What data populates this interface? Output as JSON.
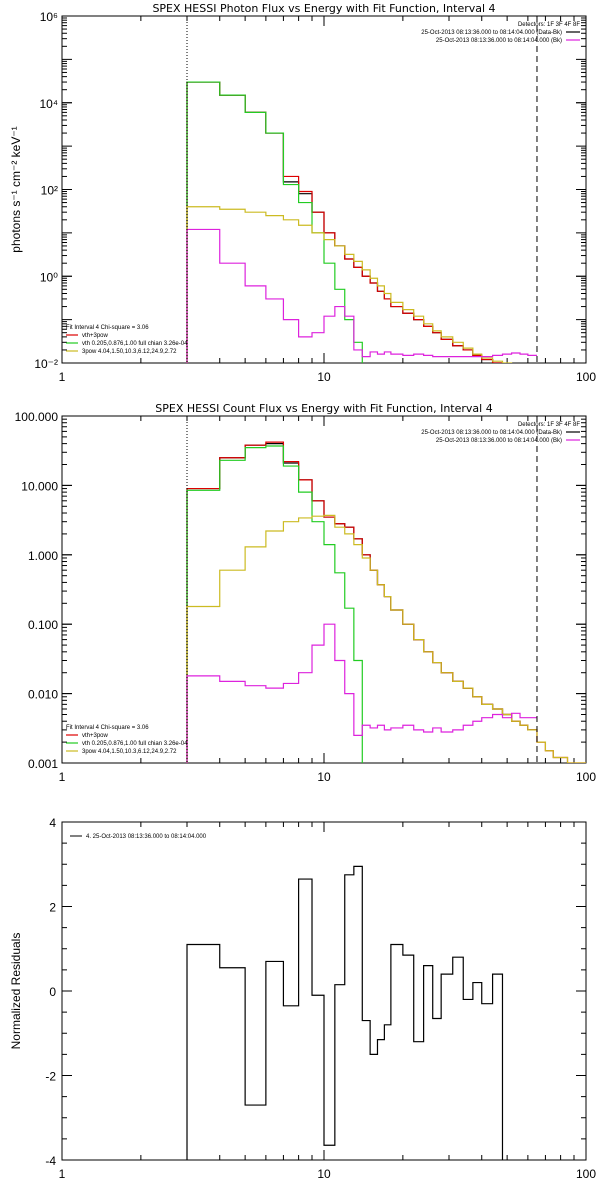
{
  "chart_data": [
    {
      "type": "line",
      "title": "SPEX HESSI Photon Flux vs Energy with Fit Function, Interval 4",
      "xlabel": "",
      "ylabel": "photons s⁻¹ cm⁻² keV⁻¹",
      "xscale": "log",
      "yscale": "log",
      "xlim": [
        1,
        100
      ],
      "ylim": [
        0.01,
        1000000
      ],
      "x_ticks": [
        "1",
        "10",
        "100"
      ],
      "y_ticks": [
        "10⁻²",
        "10⁰",
        "10²",
        "10⁴",
        "10⁶"
      ],
      "legend_right": {
        "header": "Detectors: 1F 3F 4F 8F",
        "lines": [
          {
            "text": "25-Oct-2013 08:13:36.000 to 08:14:04.000 (Data-Bk)",
            "color": "#000000"
          },
          {
            "text": "25-Oct-2013 08:13:36.000 to 08:14:04.000 (Bk)",
            "color": "#dd22dd"
          }
        ]
      },
      "legend_left": {
        "header": "Fit Interval  4   Chi-square = 3.06",
        "lines": [
          {
            "text": "vth+3pow",
            "color": "#dd0000"
          },
          {
            "text": "vth 0.205,0.876,1.00  full chian 3.26e-04",
            "color": "#22cc22"
          },
          {
            "text": "3pow 4.04,1.50,10.3,6.12,24.9,2.72",
            "color": "#ccbb22"
          }
        ]
      },
      "vlines": [
        {
          "x": 3,
          "style": "dotted"
        },
        {
          "x": 65,
          "style": "dashed"
        }
      ],
      "edges": [
        3,
        4,
        5,
        6,
        7,
        8,
        9,
        10,
        11,
        12,
        13,
        14,
        15,
        16,
        17,
        18,
        20,
        22,
        24,
        26,
        28,
        31,
        34,
        37,
        40,
        44,
        48,
        52,
        56,
        60,
        65,
        70,
        75
      ],
      "series": [
        {
          "color": "#000000",
          "values": [
            30000,
            15000,
            6000,
            2000,
            150,
            80,
            30,
            10,
            5,
            2.5,
            1.6,
            1.0,
            0.7,
            0.45,
            0.3,
            0.2,
            0.14,
            0.1,
            0.07,
            0.05,
            0.035,
            0.025,
            0.02,
            0.015,
            0.012,
            0.01,
            0.009,
            0.008,
            0.007,
            0.006
          ]
        },
        {
          "color": "#dd0000",
          "values": [
            30000,
            15000,
            6000,
            2000,
            200,
            90,
            30,
            10,
            5,
            2.5,
            1.6,
            1.0,
            0.7,
            0.45,
            0.3,
            0.2,
            0.14,
            0.1,
            0.07,
            0.05,
            0.035,
            0.025,
            0.02,
            0.015,
            0.012,
            0.01,
            0.009,
            0.008,
            0.007,
            0.006,
            0.005,
            0.004
          ]
        },
        {
          "color": "#22cc22",
          "values": [
            30000,
            15000,
            6000,
            2000,
            130,
            50,
            10,
            2,
            0.5,
            0.1,
            0.03,
            0.007,
            0.001
          ]
        },
        {
          "color": "#ccbb22",
          "values": [
            40,
            35,
            30,
            25,
            20,
            15,
            10,
            7,
            5,
            3.2,
            2.2,
            1.4,
            0.9,
            0.6,
            0.4,
            0.25,
            0.17,
            0.12,
            0.08,
            0.055,
            0.04,
            0.03,
            0.022,
            0.016,
            0.013,
            0.011,
            0.01,
            0.009,
            0.008,
            0.007,
            0.005,
            0.004
          ]
        },
        {
          "color": "#dd22dd",
          "values": [
            12,
            2,
            0.6,
            0.3,
            0.1,
            0.04,
            0.05,
            0.12,
            0.2,
            0.12,
            0.02,
            0.014,
            0.018,
            0.016,
            0.018,
            0.016,
            0.015,
            0.016,
            0.015,
            0.014,
            0.014,
            0.014,
            0.014,
            0.014,
            0.014,
            0.015,
            0.016,
            0.017,
            0.016,
            0.015
          ]
        }
      ]
    },
    {
      "type": "line",
      "title": "SPEX HESSI Count Flux vs Energy with Fit Function, Interval 4",
      "xlabel": "",
      "ylabel": "",
      "xscale": "log",
      "yscale": "log",
      "xlim": [
        1,
        100
      ],
      "ylim": [
        0.001,
        100
      ],
      "x_ticks": [
        "1",
        "10",
        "100"
      ],
      "y_ticks": [
        "0.001",
        "0.010",
        "0.100",
        "1.000",
        "10.000",
        "100.000"
      ],
      "legend_right": {
        "header": "Detectors: 1F 3F 4F 8F",
        "lines": [
          {
            "text": "25-Oct-2013 08:13:36.000 to 08:14:04.000 (Data-Bk)",
            "color": "#000000"
          },
          {
            "text": "25-Oct-2013 08:13:36.000 to 08:14:04.000 (Bk)",
            "color": "#dd22dd"
          }
        ]
      },
      "legend_left": {
        "header": "Fit Interval  4   Chi-square = 3.06",
        "lines": [
          {
            "text": "vth+3pow",
            "color": "#dd0000"
          },
          {
            "text": "vth 0.205,0.876,1.00  full chian 3.26e-04",
            "color": "#22cc22"
          },
          {
            "text": "3pow 4.04,1.50,10.3,6.12,24.9,2.72",
            "color": "#ccbb22"
          }
        ]
      },
      "vlines": [
        {
          "x": 3,
          "style": "dotted"
        },
        {
          "x": 65,
          "style": "dashed"
        }
      ],
      "edges": [
        3,
        4,
        5,
        6,
        7,
        8,
        9,
        10,
        11,
        12,
        13,
        14,
        15,
        16,
        17,
        18,
        20,
        22,
        24,
        26,
        28,
        31,
        34,
        37,
        40,
        44,
        48,
        52,
        56,
        60,
        65,
        70,
        75,
        85,
        100
      ],
      "series": [
        {
          "color": "#000000",
          "values": [
            9,
            25,
            38,
            40,
            21,
            12,
            6,
            3.5,
            2.8,
            2.5,
            1.7,
            1.0,
            0.6,
            0.37,
            0.25,
            0.16,
            0.1,
            0.06,
            0.04,
            0.028,
            0.02,
            0.015,
            0.012,
            0.009,
            0.007,
            0.006,
            0.005,
            0.004,
            0.0035,
            0.003
          ]
        },
        {
          "color": "#dd0000",
          "values": [
            9,
            25,
            38,
            42,
            22,
            12,
            6,
            3.5,
            2.8,
            2.5,
            1.7,
            1.0,
            0.6,
            0.37,
            0.25,
            0.16,
            0.1,
            0.06,
            0.04,
            0.028,
            0.02,
            0.015,
            0.012,
            0.009,
            0.007,
            0.006,
            0.005,
            0.004,
            0.0035,
            0.003,
            0.002,
            0.0015,
            0.0012,
            0.001
          ]
        },
        {
          "color": "#22cc22",
          "values": [
            8.5,
            23,
            35,
            37,
            19,
            8,
            3,
            1.4,
            0.55,
            0.17,
            0.03,
            0.0008
          ]
        },
        {
          "color": "#ccbb22",
          "values": [
            0.18,
            0.6,
            1.3,
            2.2,
            3.0,
            3.4,
            3.6,
            3.7,
            2.5,
            2.0,
            1.4,
            0.9,
            0.6,
            0.37,
            0.25,
            0.16,
            0.1,
            0.06,
            0.04,
            0.028,
            0.02,
            0.015,
            0.012,
            0.009,
            0.007,
            0.006,
            0.005,
            0.004,
            0.0035,
            0.003,
            0.002,
            0.0015,
            0.0012,
            0.001
          ]
        },
        {
          "color": "#dd22dd",
          "values": [
            0.018,
            0.015,
            0.013,
            0.012,
            0.014,
            0.02,
            0.05,
            0.1,
            0.03,
            0.01,
            0.0025,
            0.0035,
            0.0032,
            0.0035,
            0.003,
            0.0032,
            0.0035,
            0.003,
            0.0028,
            0.0032,
            0.0028,
            0.003,
            0.0035,
            0.004,
            0.0045,
            0.005,
            0.0045,
            0.0052,
            0.0045,
            0.0045
          ]
        }
      ]
    },
    {
      "type": "line",
      "title": "",
      "xlabel": "",
      "ylabel": "Normalized Residuals",
      "xscale": "log",
      "yscale": "linear",
      "xlim": [
        1,
        100
      ],
      "ylim": [
        -4,
        4
      ],
      "x_ticks": [
        "1",
        "10",
        "100"
      ],
      "y_ticks": [
        "-4",
        "-2",
        "0",
        "2",
        "4"
      ],
      "legend_left": {
        "header": "",
        "lines": [
          {
            "text": "4. 25-Oct-2013 08:13:36.000 to 08:14:04.000",
            "color": "#000000"
          }
        ]
      },
      "vlines": [],
      "edges": [
        3,
        4,
        5,
        6,
        7,
        8,
        9,
        10,
        11,
        12,
        13,
        14,
        15,
        16,
        17,
        18,
        20,
        22,
        24,
        26,
        28,
        31,
        34,
        37,
        40,
        44,
        48,
        52,
        56,
        60,
        65
      ],
      "series": [
        {
          "color": "#000000",
          "values": [
            1.1,
            0.55,
            -2.7,
            0.7,
            -0.35,
            2.65,
            -0.1,
            -3.65,
            0.15,
            2.75,
            2.95,
            -0.7,
            -1.5,
            -1.15,
            -0.8,
            1.1,
            0.85,
            -1.2,
            0.6,
            -0.65,
            0.4,
            0.8,
            -0.2,
            0.2,
            -0.3,
            0.4
          ]
        }
      ]
    }
  ]
}
